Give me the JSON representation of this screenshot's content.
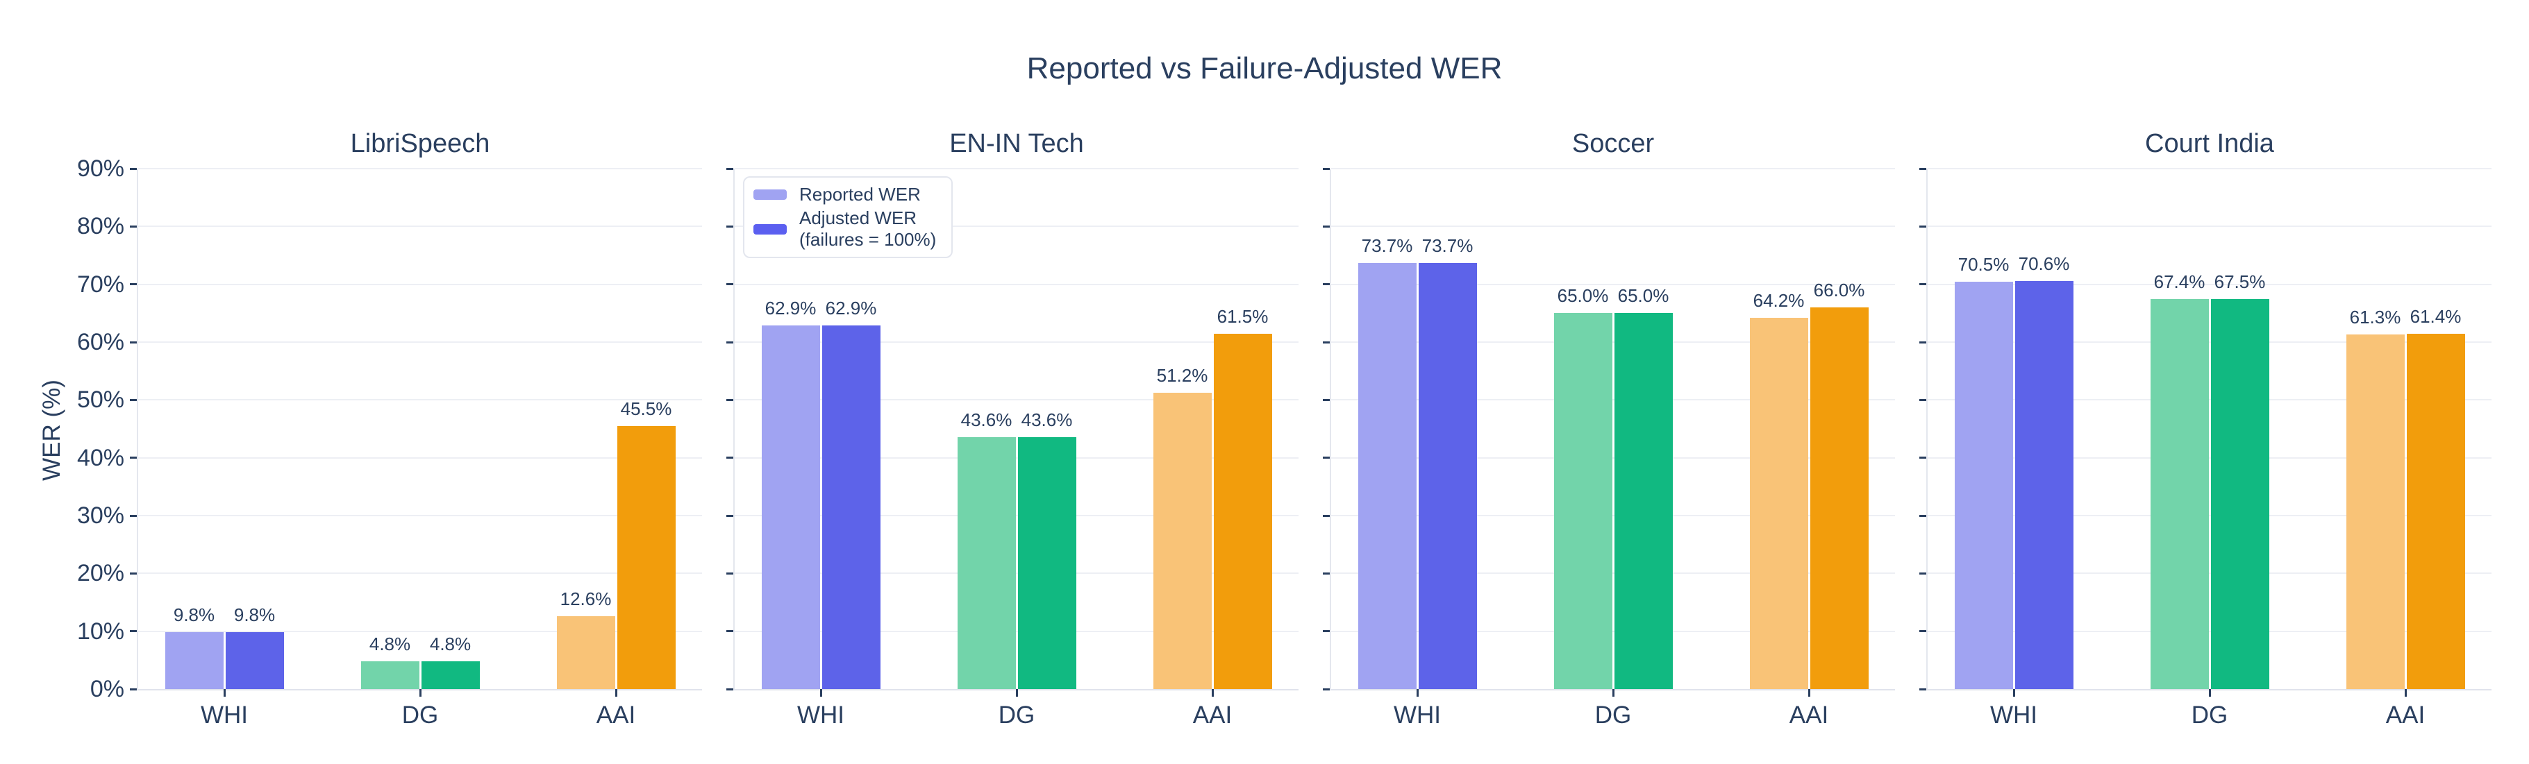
{
  "chart_data": {
    "type": "bar",
    "title": "Reported vs Failure-Adjusted WER",
    "ylabel": "WER (%)",
    "ylim": [
      0,
      90
    ],
    "yticks": [
      0,
      10,
      20,
      30,
      40,
      50,
      60,
      70,
      80,
      90
    ],
    "ytick_labels": [
      "0%",
      "10%",
      "20%",
      "30%",
      "40%",
      "50%",
      "60%",
      "70%",
      "80%",
      "90%"
    ],
    "categories": [
      "WHI",
      "DG",
      "AAI"
    ],
    "grid": "horizontal",
    "legend_position": "inside top-left of EN-IN Tech panel",
    "series_names": [
      "Reported WER",
      "Adjusted WER (failures = 100%)"
    ],
    "legend": {
      "entries": [
        {
          "label_lines": [
            "Reported WER"
          ],
          "swatch_color": "#a0a3f2"
        },
        {
          "label_lines": [
            "Adjusted WER",
            "(failures = 100%)"
          ],
          "swatch_color": "#5b5ff0"
        }
      ]
    },
    "palette": {
      "reported": [
        "#a0a3f2",
        "#72d4aa",
        "#f9c377"
      ],
      "adjusted": [
        "#5d63e9",
        "#11b981",
        "#f29d0c"
      ]
    },
    "colors": {
      "text": "#2a3f5f",
      "grid": "#edeff4",
      "axis_line": "#e4e7ee"
    },
    "subplots": [
      {
        "title": "LibriSpeech",
        "series": [
          {
            "name": "Reported WER",
            "values": [
              9.8,
              4.8,
              12.6
            ],
            "labels": [
              "9.8%",
              "4.8%",
              "12.6%"
            ]
          },
          {
            "name": "Adjusted WER (failures = 100%)",
            "values": [
              9.8,
              4.8,
              45.5
            ],
            "labels": [
              "9.8%",
              "4.8%",
              "45.5%"
            ]
          }
        ]
      },
      {
        "title": "EN-IN Tech",
        "series": [
          {
            "name": "Reported WER",
            "values": [
              62.9,
              43.6,
              51.2
            ],
            "labels": [
              "62.9%",
              "43.6%",
              "51.2%"
            ]
          },
          {
            "name": "Adjusted WER (failures = 100%)",
            "values": [
              62.9,
              43.6,
              61.5
            ],
            "labels": [
              "62.9%",
              "43.6%",
              "61.5%"
            ]
          }
        ]
      },
      {
        "title": "Soccer",
        "series": [
          {
            "name": "Reported WER",
            "values": [
              73.7,
              65.0,
              64.2
            ],
            "labels": [
              "73.7%",
              "65.0%",
              "64.2%"
            ]
          },
          {
            "name": "Adjusted WER (failures = 100%)",
            "values": [
              73.7,
              65.0,
              66.0
            ],
            "labels": [
              "73.7%",
              "65.0%",
              "66.0%"
            ]
          }
        ]
      },
      {
        "title": "Court India",
        "series": [
          {
            "name": "Reported WER",
            "values": [
              70.5,
              67.4,
              61.3
            ],
            "labels": [
              "70.5%",
              "67.4%",
              "61.3%"
            ]
          },
          {
            "name": "Adjusted WER (failures = 100%)",
            "values": [
              70.6,
              67.5,
              61.4
            ],
            "labels": [
              "70.6%",
              "67.5%",
              "61.4%"
            ]
          }
        ]
      }
    ]
  }
}
